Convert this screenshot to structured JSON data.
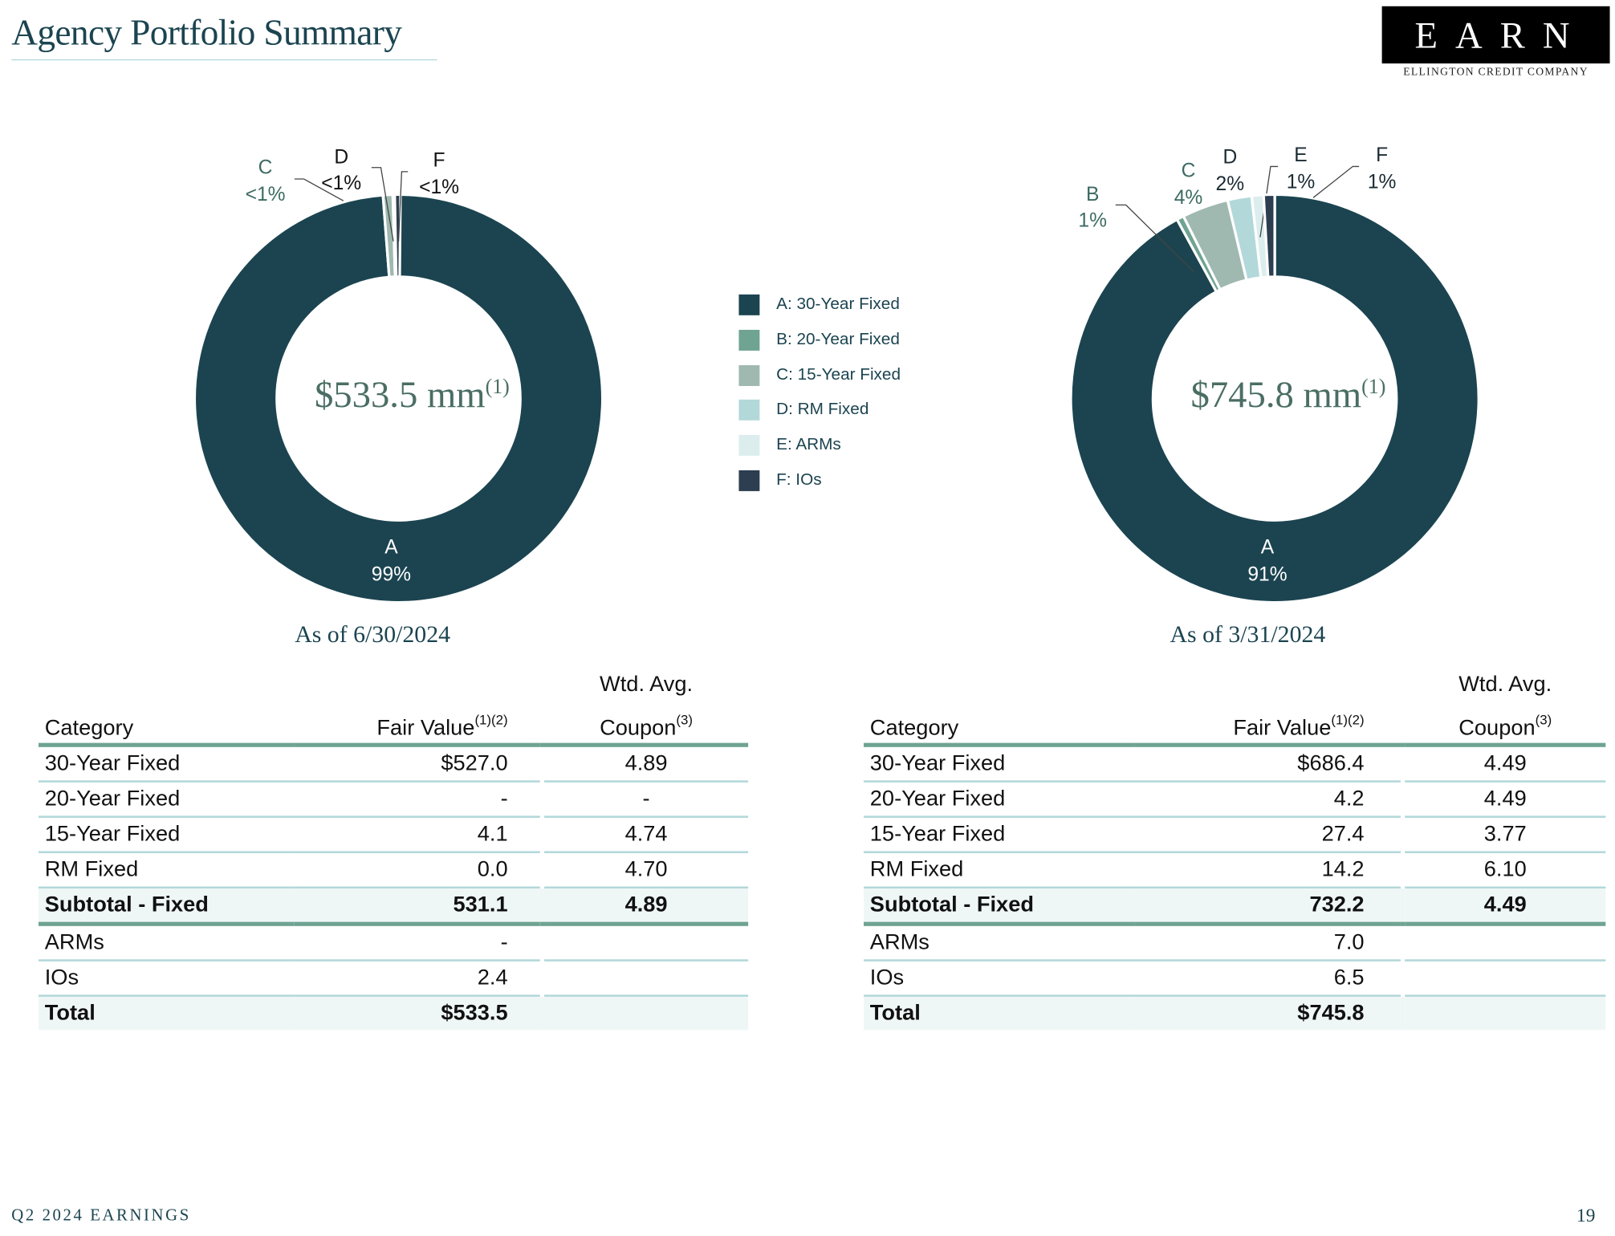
{
  "header": {
    "title": "Agency Portfolio Summary",
    "logo_text": "EARN",
    "logo_subtitle": "ELLINGTON CREDIT COMPANY"
  },
  "colors": {
    "A": "#1b4450",
    "B": "#6fa392",
    "C": "#9fb9b0",
    "D": "#b3d8da",
    "E": "#dcedee",
    "F": "#2c3e50",
    "accent": "#6fa392",
    "row_line": "#b3d8da"
  },
  "legend": [
    {
      "key": "A",
      "label": "A: 30-Year Fixed"
    },
    {
      "key": "B",
      "label": "B: 20-Year Fixed"
    },
    {
      "key": "C",
      "label": "C: 15-Year Fixed"
    },
    {
      "key": "D",
      "label": "D: RM Fixed"
    },
    {
      "key": "E",
      "label": "E: ARMs"
    },
    {
      "key": "F",
      "label": "F: IOs"
    }
  ],
  "chart_data": [
    {
      "type": "pie",
      "variant": "donut",
      "center_label": "$533.5 mm",
      "center_note": "(1)",
      "caption": "As of 6/30/2024",
      "slices": [
        {
          "key": "A",
          "value": 527.0,
          "label": "99%",
          "shown": true
        },
        {
          "key": "B",
          "value": 0,
          "label": "",
          "shown": false
        },
        {
          "key": "C",
          "value": 4.1,
          "label": "<1%",
          "shown": true
        },
        {
          "key": "D",
          "value": 0.0,
          "label": "<1%",
          "shown": true
        },
        {
          "key": "E",
          "value": 0,
          "label": "",
          "shown": false
        },
        {
          "key": "F",
          "value": 2.4,
          "label": "<1%",
          "shown": true
        }
      ]
    },
    {
      "type": "pie",
      "variant": "donut",
      "center_label": "$745.8 mm",
      "center_note": "(1)",
      "caption": "As of 3/31/2024",
      "slices": [
        {
          "key": "A",
          "value": 686.4,
          "label": "91%",
          "shown": true
        },
        {
          "key": "B",
          "value": 4.2,
          "label": "1%",
          "shown": true
        },
        {
          "key": "C",
          "value": 27.4,
          "label": "4%",
          "shown": true
        },
        {
          "key": "D",
          "value": 14.2,
          "label": "2%",
          "shown": true
        },
        {
          "key": "E",
          "value": 7.0,
          "label": "1%",
          "shown": true
        },
        {
          "key": "F",
          "value": 6.5,
          "label": "1%",
          "shown": true
        }
      ]
    }
  ],
  "tables": [
    {
      "head": {
        "category": "Category",
        "fair_value": "Fair Value",
        "fair_value_note": "(1)(2)",
        "coupon_top": "Wtd. Avg.",
        "coupon": "Coupon",
        "coupon_note": "(3)"
      },
      "rows": [
        {
          "category": "30-Year Fixed",
          "fair_value": "$527.0",
          "coupon": "4.89"
        },
        {
          "category": "20-Year Fixed",
          "fair_value": "-",
          "coupon": "-"
        },
        {
          "category": "15-Year Fixed",
          "fair_value": "4.1",
          "coupon": "4.74"
        },
        {
          "category": "RM Fixed",
          "fair_value": "0.0",
          "coupon": "4.70"
        },
        {
          "category": "Subtotal - Fixed",
          "fair_value": "531.1",
          "coupon": "4.89"
        },
        {
          "category": "ARMs",
          "fair_value": "-",
          "coupon": ""
        },
        {
          "category": "IOs",
          "fair_value": "2.4",
          "coupon": ""
        },
        {
          "category": "Total",
          "fair_value": "$533.5",
          "coupon": ""
        }
      ]
    },
    {
      "head": {
        "category": "Category",
        "fair_value": "Fair Value",
        "fair_value_note": "(1)(2)",
        "coupon_top": "Wtd. Avg.",
        "coupon": "Coupon",
        "coupon_note": "(3)"
      },
      "rows": [
        {
          "category": "30-Year Fixed",
          "fair_value": "$686.4",
          "coupon": "4.49"
        },
        {
          "category": "20-Year Fixed",
          "fair_value": "4.2",
          "coupon": "4.49"
        },
        {
          "category": "15-Year Fixed",
          "fair_value": "27.4",
          "coupon": "3.77"
        },
        {
          "category": "RM Fixed",
          "fair_value": "14.2",
          "coupon": "6.10"
        },
        {
          "category": "Subtotal - Fixed",
          "fair_value": "732.2",
          "coupon": "4.49"
        },
        {
          "category": "ARMs",
          "fair_value": "7.0",
          "coupon": ""
        },
        {
          "category": "IOs",
          "fair_value": "6.5",
          "coupon": ""
        },
        {
          "category": "Total",
          "fair_value": "$745.8",
          "coupon": ""
        }
      ]
    }
  ],
  "footer": {
    "left": "Q2 2024 EARNINGS",
    "page": "19"
  }
}
